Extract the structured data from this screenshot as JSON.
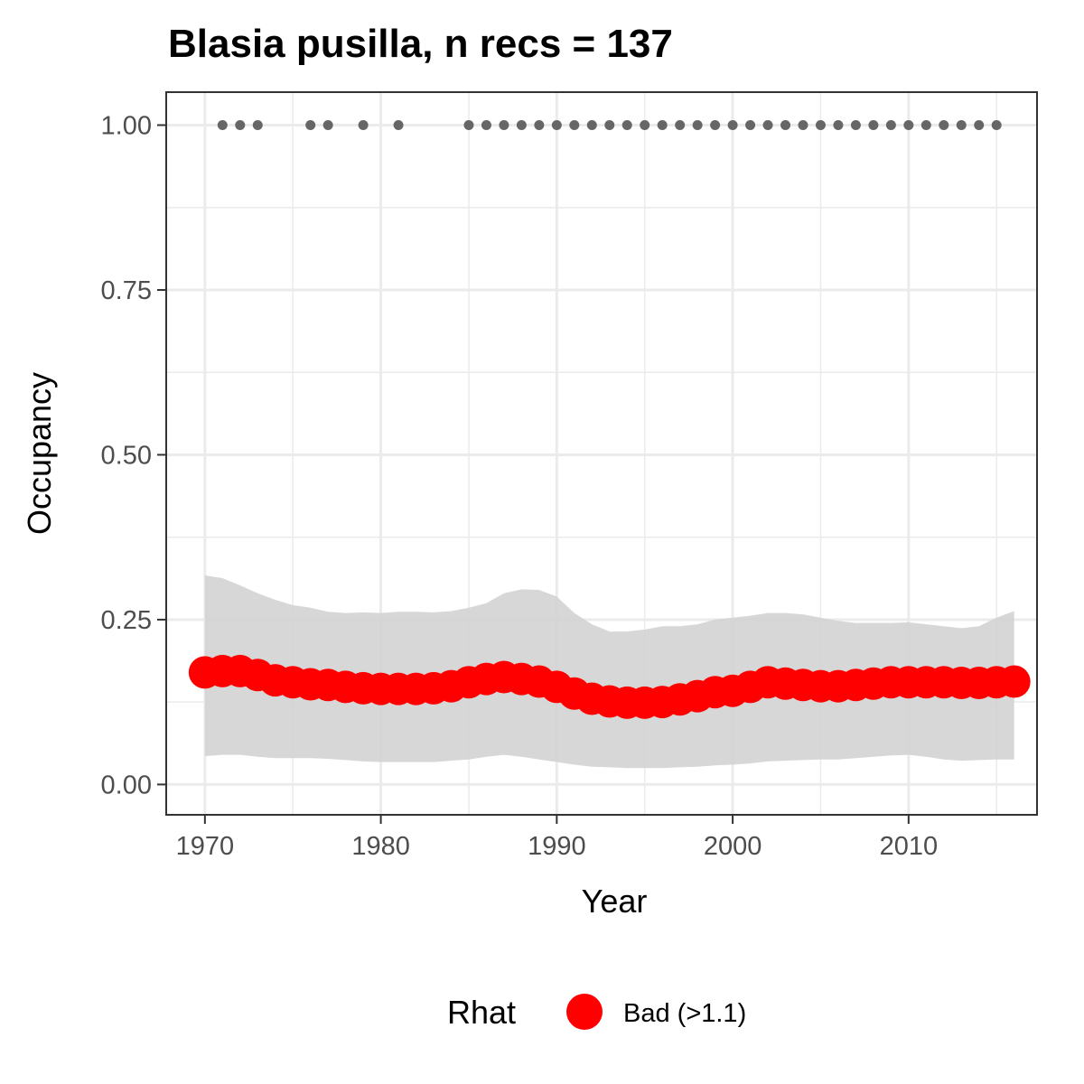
{
  "chart_data": {
    "type": "line",
    "title": "Blasia pusilla, n recs = 137",
    "xlabel": "Year",
    "ylabel": "Occupancy",
    "xlim": [
      1967.8,
      2017.3
    ],
    "ylim": [
      -0.046,
      1.05
    ],
    "x_ticks": [
      1970,
      1980,
      1990,
      2000,
      2010
    ],
    "x_tick_labels": [
      "1970",
      "1980",
      "1990",
      "2000",
      "2010"
    ],
    "y_ticks": [
      0.0,
      0.25,
      0.5,
      0.75,
      1.0
    ],
    "y_tick_labels": [
      "0.00",
      "0.25",
      "0.50",
      "0.75",
      "1.00"
    ],
    "grid": true,
    "legend": {
      "position": "bottom",
      "title": "Rhat",
      "entries": [
        {
          "label": "Bad (>1.1)",
          "color": "#ff0000"
        }
      ]
    },
    "x": [
      1970,
      1971,
      1972,
      1973,
      1974,
      1975,
      1976,
      1977,
      1978,
      1979,
      1980,
      1981,
      1982,
      1983,
      1984,
      1985,
      1986,
      1987,
      1988,
      1989,
      1990,
      1991,
      1992,
      1993,
      1994,
      1995,
      1996,
      1997,
      1998,
      1999,
      2000,
      2001,
      2002,
      2003,
      2004,
      2005,
      2006,
      2007,
      2008,
      2009,
      2010,
      2011,
      2012,
      2013,
      2014,
      2015,
      2016
    ],
    "series": [
      {
        "name": "Bad (>1.1)",
        "color": "#ff0000",
        "values": [
          0.17,
          0.172,
          0.172,
          0.166,
          0.158,
          0.155,
          0.152,
          0.151,
          0.148,
          0.146,
          0.145,
          0.145,
          0.145,
          0.146,
          0.149,
          0.155,
          0.16,
          0.163,
          0.16,
          0.156,
          0.148,
          0.138,
          0.13,
          0.126,
          0.124,
          0.124,
          0.125,
          0.129,
          0.134,
          0.14,
          0.142,
          0.148,
          0.155,
          0.153,
          0.151,
          0.149,
          0.149,
          0.151,
          0.153,
          0.155,
          0.155,
          0.155,
          0.155,
          0.154,
          0.154,
          0.155,
          0.156
        ]
      }
    ],
    "ribbon": {
      "color": "#d3d3d3",
      "lower": [
        0.043,
        0.045,
        0.045,
        0.042,
        0.04,
        0.04,
        0.04,
        0.039,
        0.037,
        0.035,
        0.034,
        0.034,
        0.034,
        0.034,
        0.036,
        0.038,
        0.042,
        0.045,
        0.042,
        0.038,
        0.034,
        0.03,
        0.027,
        0.026,
        0.025,
        0.025,
        0.025,
        0.026,
        0.027,
        0.029,
        0.03,
        0.032,
        0.035,
        0.036,
        0.037,
        0.038,
        0.038,
        0.04,
        0.042,
        0.044,
        0.045,
        0.042,
        0.038,
        0.036,
        0.037,
        0.038,
        0.038
      ],
      "upper": [
        0.317,
        0.313,
        0.302,
        0.29,
        0.28,
        0.272,
        0.268,
        0.262,
        0.26,
        0.261,
        0.26,
        0.262,
        0.262,
        0.261,
        0.263,
        0.268,
        0.275,
        0.29,
        0.296,
        0.295,
        0.285,
        0.26,
        0.243,
        0.232,
        0.232,
        0.235,
        0.24,
        0.24,
        0.243,
        0.25,
        0.253,
        0.256,
        0.26,
        0.26,
        0.258,
        0.253,
        0.248,
        0.245,
        0.245,
        0.245,
        0.246,
        0.243,
        0.24,
        0.237,
        0.24,
        0.253,
        0.263
      ]
    },
    "records": {
      "color": "#666666",
      "y": 1.0,
      "x": [
        1971,
        1972,
        1973,
        1976,
        1977,
        1979,
        1981,
        1985,
        1986,
        1987,
        1988,
        1989,
        1990,
        1991,
        1992,
        1993,
        1994,
        1995,
        1996,
        1997,
        1998,
        1999,
        2000,
        2001,
        2002,
        2003,
        2004,
        2005,
        2006,
        2007,
        2008,
        2009,
        2010,
        2011,
        2012,
        2013,
        2014,
        2015
      ]
    }
  }
}
